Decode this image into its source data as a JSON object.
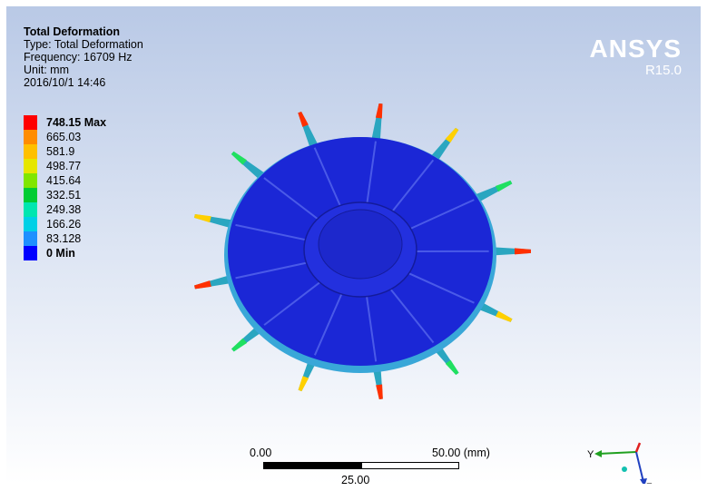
{
  "result": {
    "title": "Total Deformation",
    "type_line": "Type: Total Deformation",
    "frequency_line": "Frequency: 16709 Hz",
    "unit_line": "Unit: mm",
    "date_line": "2016/10/1 14:46"
  },
  "legend": {
    "max_label": "748.15 Max",
    "min_label": "0 Min",
    "levels": [
      "665.03",
      "581.9",
      "498.77",
      "415.64",
      "332.51",
      "249.38",
      "166.26",
      "83.128"
    ],
    "colors": [
      "#ff0000",
      "#ff8c00",
      "#ffc000",
      "#e6e600",
      "#80e600",
      "#00cc33",
      "#00e6b0",
      "#00d0e6",
      "#1e90ff",
      "#0000ff"
    ]
  },
  "logo": {
    "brand": "ANSYS",
    "version": "R15.0"
  },
  "scale_bar": {
    "left": "0.00",
    "right": "50.00 (mm)",
    "middle": "25.00"
  },
  "triad": {
    "y_label": "Y",
    "z_label": "Z",
    "x_color": "#e02020",
    "y_color": "#20a020",
    "z_color": "#2040c0"
  },
  "model": {
    "body_color": "#1b27d6",
    "tip_colors": [
      "#ff3000",
      "#ffd000",
      "#20e060"
    ]
  }
}
